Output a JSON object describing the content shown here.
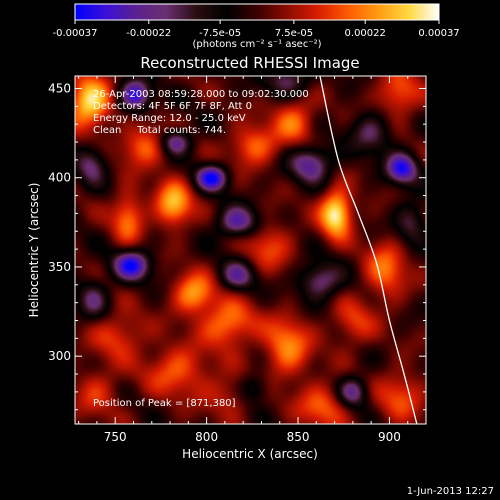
{
  "chart_data": {
    "type": "heatmap",
    "title": "Reconstructed RHESSI Image",
    "xlabel": "Heliocentric X (arcsec)",
    "ylabel": "Heliocentric Y (arcsec)",
    "xlim": [
      728,
      920
    ],
    "ylim": [
      262,
      457
    ],
    "x_ticks": [
      "750",
      "800",
      "850",
      "900"
    ],
    "y_ticks": [
      "300",
      "350",
      "400",
      "450"
    ],
    "colorbar": {
      "range": [
        -0.00037,
        0.00037
      ],
      "ticks": [
        "-0.00037",
        "-0.00022",
        "-7.5e-05",
        "7.5e-05",
        "0.00022",
        "0.00037"
      ],
      "unit": "(photons cm⁻² s⁻¹ asec⁻²)",
      "colormap": [
        "#0000ff",
        "#3a10d8",
        "#5a2090",
        "#6a3070",
        "#2a0c10",
        "#000000",
        "#3a0000",
        "#8c0c00",
        "#d81c00",
        "#ff5a00",
        "#ff9c10",
        "#ffd840",
        "#ffffff"
      ]
    },
    "annotations": [
      "26-Apr-2003 08:59:28.000 to 09:02:30.000",
      "Detectors: 4F 5F 6F 7F 8F, Att 0",
      "Energy Range: 12.0 - 25.0 keV",
      "Clean     Total counts: 744."
    ],
    "peak_label": "Position of Peak = [871,380]",
    "peak": {
      "x": 871,
      "y": 380
    },
    "limb_points": [
      [
        862,
        457
      ],
      [
        872,
        410
      ],
      [
        883,
        380
      ],
      [
        893,
        352
      ],
      [
        900,
        320
      ],
      [
        908,
        290
      ],
      [
        915,
        262
      ]
    ],
    "sources": [
      {
        "x": 871,
        "y": 380,
        "v": 0.00037,
        "sx": 6,
        "sy": 9
      },
      {
        "x": 736,
        "y": 442,
        "v": 0.00034,
        "sx": 8,
        "sy": 10
      },
      {
        "x": 782,
        "y": 385,
        "v": 0.00028,
        "sx": 7,
        "sy": 9
      },
      {
        "x": 793,
        "y": 335,
        "v": 0.00025,
        "sx": 8,
        "sy": 8
      },
      {
        "x": 757,
        "y": 378,
        "v": 0.00021,
        "sx": 6,
        "sy": 10
      },
      {
        "x": 766,
        "y": 418,
        "v": 0.0002,
        "sx": 9,
        "sy": 8
      },
      {
        "x": 812,
        "y": 318,
        "v": 0.00023,
        "sx": 10,
        "sy": 9
      },
      {
        "x": 844,
        "y": 305,
        "v": 0.00022,
        "sx": 9,
        "sy": 12
      },
      {
        "x": 826,
        "y": 418,
        "v": 0.0002,
        "sx": 9,
        "sy": 8
      },
      {
        "x": 848,
        "y": 432,
        "v": 0.00019,
        "sx": 8,
        "sy": 9
      },
      {
        "x": 905,
        "y": 447,
        "v": 0.00019,
        "sx": 8,
        "sy": 9
      },
      {
        "x": 898,
        "y": 348,
        "v": 0.00019,
        "sx": 8,
        "sy": 12
      },
      {
        "x": 784,
        "y": 292,
        "v": 0.00018,
        "sx": 12,
        "sy": 10
      },
      {
        "x": 752,
        "y": 312,
        "v": 0.00015,
        "sx": 10,
        "sy": 9
      },
      {
        "x": 864,
        "y": 272,
        "v": 0.00018,
        "sx": 10,
        "sy": 9
      },
      {
        "x": 906,
        "y": 278,
        "v": 0.00016,
        "sx": 9,
        "sy": 10
      },
      {
        "x": 834,
        "y": 362,
        "v": 0.00015,
        "sx": 9,
        "sy": 10
      },
      {
        "x": 880,
        "y": 318,
        "v": 0.00014,
        "sx": 8,
        "sy": 9
      },
      {
        "x": 740,
        "y": 280,
        "v": 0.00012,
        "sx": 9,
        "sy": 10
      },
      {
        "x": 813,
        "y": 278,
        "v": 0.00012,
        "sx": 10,
        "sy": 8
      },
      {
        "x": 761,
        "y": 446,
        "v": -0.00033,
        "sx": 6,
        "sy": 6
      },
      {
        "x": 783,
        "y": 420,
        "v": -0.00026,
        "sx": 6,
        "sy": 5
      },
      {
        "x": 803,
        "y": 400,
        "v": -0.00034,
        "sx": 6,
        "sy": 5
      },
      {
        "x": 817,
        "y": 375,
        "v": -0.00026,
        "sx": 8,
        "sy": 6
      },
      {
        "x": 759,
        "y": 351,
        "v": -0.00033,
        "sx": 7,
        "sy": 6
      },
      {
        "x": 857,
        "y": 408,
        "v": -0.00026,
        "sx": 8,
        "sy": 7
      },
      {
        "x": 907,
        "y": 405,
        "v": -0.00033,
        "sx": 6,
        "sy": 6
      },
      {
        "x": 862,
        "y": 342,
        "v": -0.00022,
        "sx": 8,
        "sy": 7
      },
      {
        "x": 817,
        "y": 345,
        "v": -0.00021,
        "sx": 7,
        "sy": 6
      },
      {
        "x": 880,
        "y": 280,
        "v": -0.00024,
        "sx": 6,
        "sy": 6
      },
      {
        "x": 826,
        "y": 282,
        "v": -0.00016,
        "sx": 6,
        "sy": 6
      },
      {
        "x": 845,
        "y": 455,
        "v": -0.00018,
        "sx": 9,
        "sy": 6
      },
      {
        "x": 737,
        "y": 408,
        "v": -0.00018,
        "sx": 6,
        "sy": 8
      },
      {
        "x": 738,
        "y": 332,
        "v": -0.00016,
        "sx": 6,
        "sy": 8
      },
      {
        "x": 890,
        "y": 425,
        "v": -0.00017,
        "sx": 8,
        "sy": 8
      },
      {
        "x": 912,
        "y": 375,
        "v": -0.00016,
        "sx": 6,
        "sy": 8
      }
    ]
  },
  "footer": {
    "date": "1-Jun-2013 12:27"
  }
}
